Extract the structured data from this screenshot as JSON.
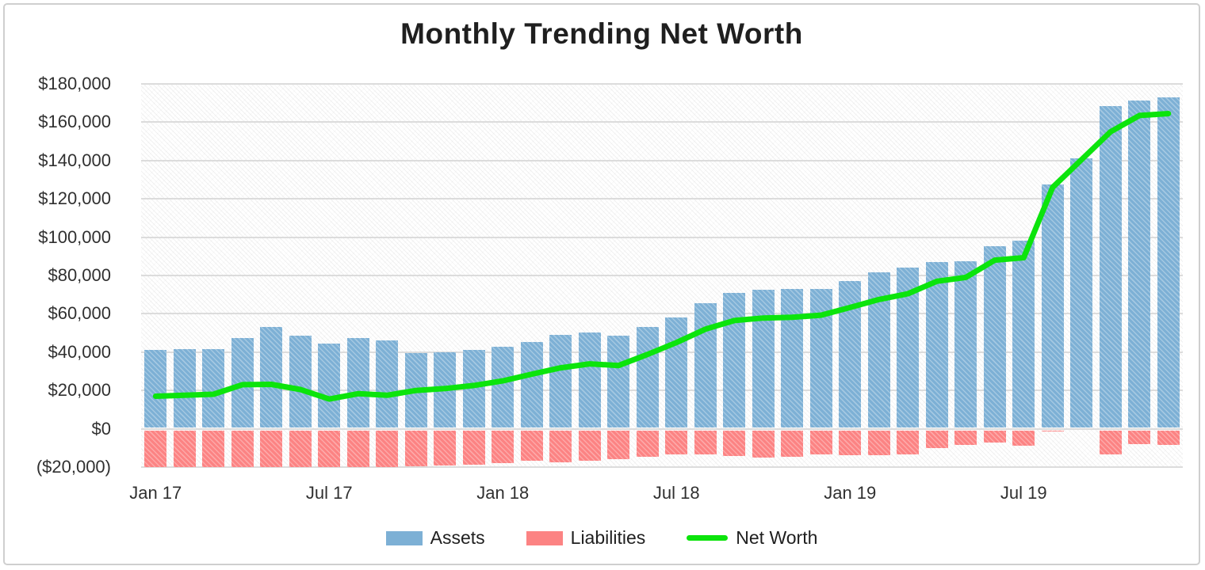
{
  "figure": {
    "title": "Monthly Trending Net Worth"
  },
  "colors": {
    "assets": "#7db0d5",
    "liabilities": "#fc8383",
    "net_worth": "#0ce40c",
    "gridline": "#dcdcdc",
    "axis_text": "#303030",
    "title_text": "#1f1f1f",
    "card_border": "#cfcfcf"
  },
  "legend": {
    "items": [
      {
        "label": "Assets",
        "marker": "swatch",
        "color": "#7db0d5"
      },
      {
        "label": "Liabilities",
        "marker": "swatch",
        "color": "#fc8383"
      },
      {
        "label": "Net Worth",
        "marker": "line",
        "color": "#0ce40c"
      }
    ]
  },
  "y_axis": {
    "tick_labels": [
      "$180,000",
      "$160,000",
      "$140,000",
      "$120,000",
      "$100,000",
      "$80,000",
      "$60,000",
      "$40,000",
      "$20,000",
      "$0",
      "($20,000)"
    ],
    "tick_values": [
      180000,
      160000,
      140000,
      120000,
      100000,
      80000,
      60000,
      40000,
      20000,
      0,
      -20000
    ]
  },
  "x_axis": {
    "visible_labels": [
      "Jan 17",
      "Jul 17",
      "Jan 18",
      "Jul 18",
      "Jan 19",
      "Jul 19"
    ],
    "visible_label_indices": [
      0,
      6,
      12,
      18,
      24,
      30
    ]
  },
  "chart_data": {
    "type": "bar",
    "subtype": "grouped-bars-with-line-overlay",
    "title": "Monthly Trending Net Worth",
    "xlabel": "",
    "ylabel": "",
    "ylim": [
      -20000,
      180000
    ],
    "grid": true,
    "legend_position": "bottom",
    "note": "Liabilities bars earlier than Oct 2017 extend below the axis minimum and are clipped at -20,000 in the rendering.",
    "categories": [
      "Jan 17",
      "Feb 17",
      "Mar 17",
      "Apr 17",
      "May 17",
      "Jun 17",
      "Jul 17",
      "Aug 17",
      "Sep 17",
      "Oct 17",
      "Nov 17",
      "Dec 17",
      "Jan 18",
      "Feb 18",
      "Mar 18",
      "Apr 18",
      "May 18",
      "Jun 18",
      "Jul 18",
      "Aug 18",
      "Sep 18",
      "Oct 18",
      "Nov 18",
      "Dec 18",
      "Jan 19",
      "Feb 19",
      "Mar 19",
      "Apr 19",
      "May 19",
      "Jun 19",
      "Jul 19",
      "Aug 19",
      "Sep 19",
      "Oct 19",
      "Nov 19",
      "Dec 19"
    ],
    "series": [
      {
        "name": "Assets",
        "type": "bar",
        "color": "#7db0d5",
        "values": [
          41000,
          41500,
          41500,
          47300,
          53000,
          48800,
          44500,
          47300,
          46000,
          39400,
          40000,
          41200,
          43000,
          45300,
          49200,
          50400,
          48700,
          53300,
          58200,
          65500,
          70800,
          72700,
          73000,
          72800,
          77300,
          81500,
          84000,
          87000,
          87300,
          95300,
          98200,
          127500,
          141000,
          168500,
          171500,
          173000
        ]
      },
      {
        "name": "Liabilities",
        "type": "bar",
        "color": "#fc8383",
        "values": [
          -24000,
          -24000,
          -23500,
          -24300,
          -29800,
          -28300,
          -29000,
          -29000,
          -28500,
          -19400,
          -19000,
          -18600,
          -18000,
          -16800,
          -17400,
          -16500,
          -15700,
          -14500,
          -13200,
          -13500,
          -14300,
          -14900,
          -14800,
          -13500,
          -14000,
          -14000,
          -13500,
          -10000,
          -8300,
          -7300,
          -8900,
          -1500,
          -500,
          -13500,
          -8000,
          -8500
        ]
      },
      {
        "name": "Net Worth",
        "type": "line",
        "color": "#0ce40c",
        "values": [
          17000,
          17500,
          18000,
          23000,
          23200,
          20500,
          15500,
          18300,
          17500,
          20000,
          21000,
          22600,
          25000,
          28500,
          31800,
          33900,
          33000,
          38800,
          45000,
          52000,
          56500,
          57800,
          58200,
          59300,
          63300,
          67500,
          70500,
          77000,
          79000,
          88000,
          89300,
          126000,
          140500,
          155000,
          163500,
          164500
        ]
      }
    ]
  }
}
